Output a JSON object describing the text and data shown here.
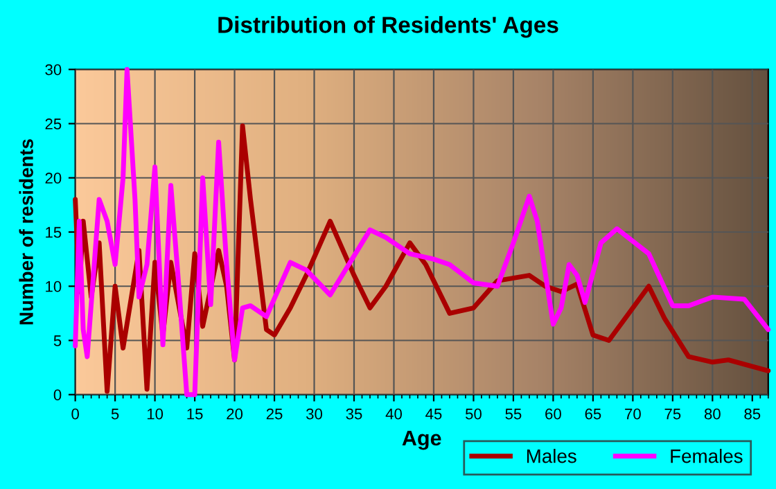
{
  "chart_data": {
    "type": "line",
    "title": "Distribution of Residents' Ages",
    "xlabel": "Age",
    "ylabel": "Number of residents",
    "xlim": [
      0,
      87
    ],
    "xticks": [
      0,
      5,
      10,
      15,
      20,
      25,
      30,
      35,
      40,
      45,
      50,
      55,
      60,
      65,
      70,
      75,
      80,
      85
    ],
    "ylim": [
      0,
      30
    ],
    "yticks": [
      0,
      5,
      10,
      15,
      20,
      25,
      30
    ],
    "grid": true,
    "legend": "bottom right",
    "line_style": "solid",
    "series": [
      {
        "name": "Males",
        "color": "#aa0000",
        "x": [
          0,
          0.5,
          1,
          2,
          3,
          4,
          5,
          6,
          8,
          9,
          10,
          11,
          12,
          14,
          15,
          16,
          18,
          19,
          20,
          21,
          22,
          24,
          25,
          27,
          29,
          32,
          35,
          37,
          39,
          42,
          44,
          47,
          50,
          53,
          57,
          59,
          61,
          63,
          65,
          67,
          69,
          72,
          74,
          77,
          80,
          82,
          87
        ],
        "values": [
          18,
          9.5,
          16,
          9,
          14,
          0.3,
          10,
          4.3,
          13.3,
          0.5,
          12.2,
          5.5,
          12.2,
          4.3,
          13,
          6.3,
          13.3,
          10,
          3.2,
          24.8,
          18,
          6,
          5.5,
          8,
          11,
          16,
          11,
          8,
          10,
          14,
          12,
          7.5,
          8,
          10.5,
          11,
          10,
          9.5,
          10.2,
          5.5,
          5,
          7,
          10,
          7,
          3.5,
          3,
          3.2,
          2.2
        ]
      },
      {
        "name": "Females",
        "color": "#ff00ff",
        "x": [
          0,
          0.5,
          1,
          1.5,
          3,
          4,
          5,
          6,
          6.5,
          7.5,
          8,
          9,
          10,
          11,
          12,
          13,
          14,
          15,
          16,
          17,
          18,
          19,
          20,
          21,
          22,
          24,
          27,
          29,
          32,
          37,
          39,
          42,
          45,
          47,
          50,
          53,
          55,
          57,
          58,
          60,
          61,
          62,
          63,
          64,
          66,
          68,
          72,
          75,
          77,
          80,
          84,
          87
        ],
        "values": [
          4.5,
          16,
          6,
          3.5,
          18,
          16,
          12,
          20,
          30,
          18,
          9,
          12,
          21,
          4.6,
          19.3,
          10,
          0,
          0,
          20,
          8.3,
          23.3,
          12,
          3.2,
          8,
          8.2,
          7.2,
          12.2,
          11.5,
          9.2,
          15.2,
          14.5,
          13,
          12.5,
          12,
          10.3,
          10,
          14,
          18.3,
          16,
          6.5,
          8,
          12,
          11,
          8.5,
          14,
          15.3,
          13,
          8.2,
          8.2,
          9,
          8.8,
          6
        ]
      }
    ]
  }
}
